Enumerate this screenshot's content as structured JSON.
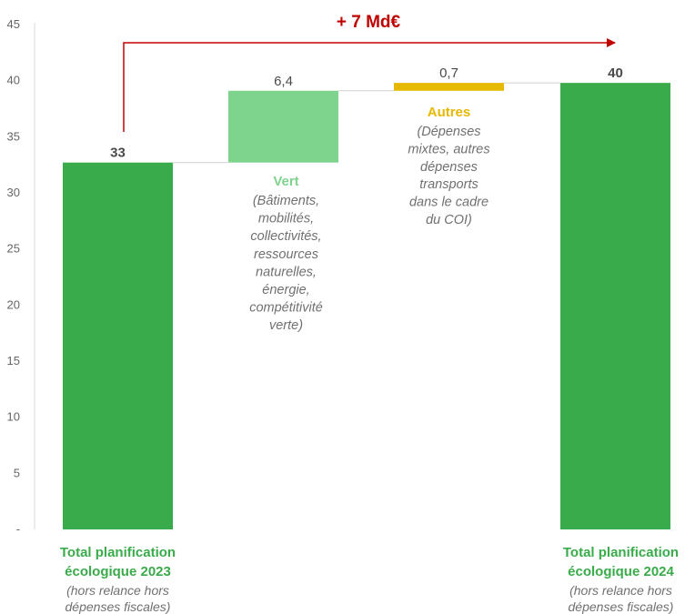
{
  "colors": {
    "total": "#3aab4a",
    "vert": "#7fd48d",
    "autres": "#e6b800",
    "arrow": "#c00000",
    "axis": "#d9d9d9",
    "connector": "#d0d0d0"
  },
  "headline": "+ 7 Md€",
  "chart_data": {
    "type": "bar",
    "subtype": "waterfall",
    "ylim": [
      0,
      45
    ],
    "yticks": [
      {
        "value": 0,
        "label": "-"
      },
      {
        "value": 5,
        "label": "5"
      },
      {
        "value": 10,
        "label": "10"
      },
      {
        "value": 15,
        "label": "15"
      },
      {
        "value": 20,
        "label": "20"
      },
      {
        "value": 25,
        "label": "25"
      },
      {
        "value": 30,
        "label": "30"
      },
      {
        "value": 35,
        "label": "35"
      },
      {
        "value": 40,
        "label": "40"
      },
      {
        "value": 45,
        "label": "45"
      }
    ],
    "grid": false,
    "bars": [
      {
        "name": "total-2023",
        "base": 0,
        "value": 32.7,
        "label": "33",
        "color_key": "total"
      },
      {
        "name": "vert",
        "base": 32.7,
        "value": 6.4,
        "label": "6,4",
        "color_key": "vert"
      },
      {
        "name": "autres",
        "base": 39.1,
        "value": 0.7,
        "label": "0,7",
        "color_key": "autres"
      },
      {
        "name": "total-2024",
        "base": 0,
        "value": 39.8,
        "label": "40",
        "color_key": "total"
      }
    ]
  },
  "categories": [
    {
      "title": [
        "Total planification",
        "écologique 2023"
      ],
      "sub": [
        "(hors relance hors",
        "dépenses fiscales)"
      ]
    },
    {
      "title": [
        "Vert"
      ],
      "note": [
        "(Bâtiments,",
        "mobilités,",
        "collectivités,",
        "ressources",
        "naturelles,",
        "énergie,",
        "compétitivité",
        "verte)"
      ]
    },
    {
      "title": [
        "Autres"
      ],
      "note": [
        "(Dépenses",
        "mixtes, autres",
        "dépenses",
        "transports",
        "dans le cadre",
        "du COI)"
      ]
    },
    {
      "title": [
        "Total planification",
        "écologique 2024"
      ],
      "sub": [
        "(hors relance hors",
        "dépenses fiscales)"
      ]
    }
  ]
}
